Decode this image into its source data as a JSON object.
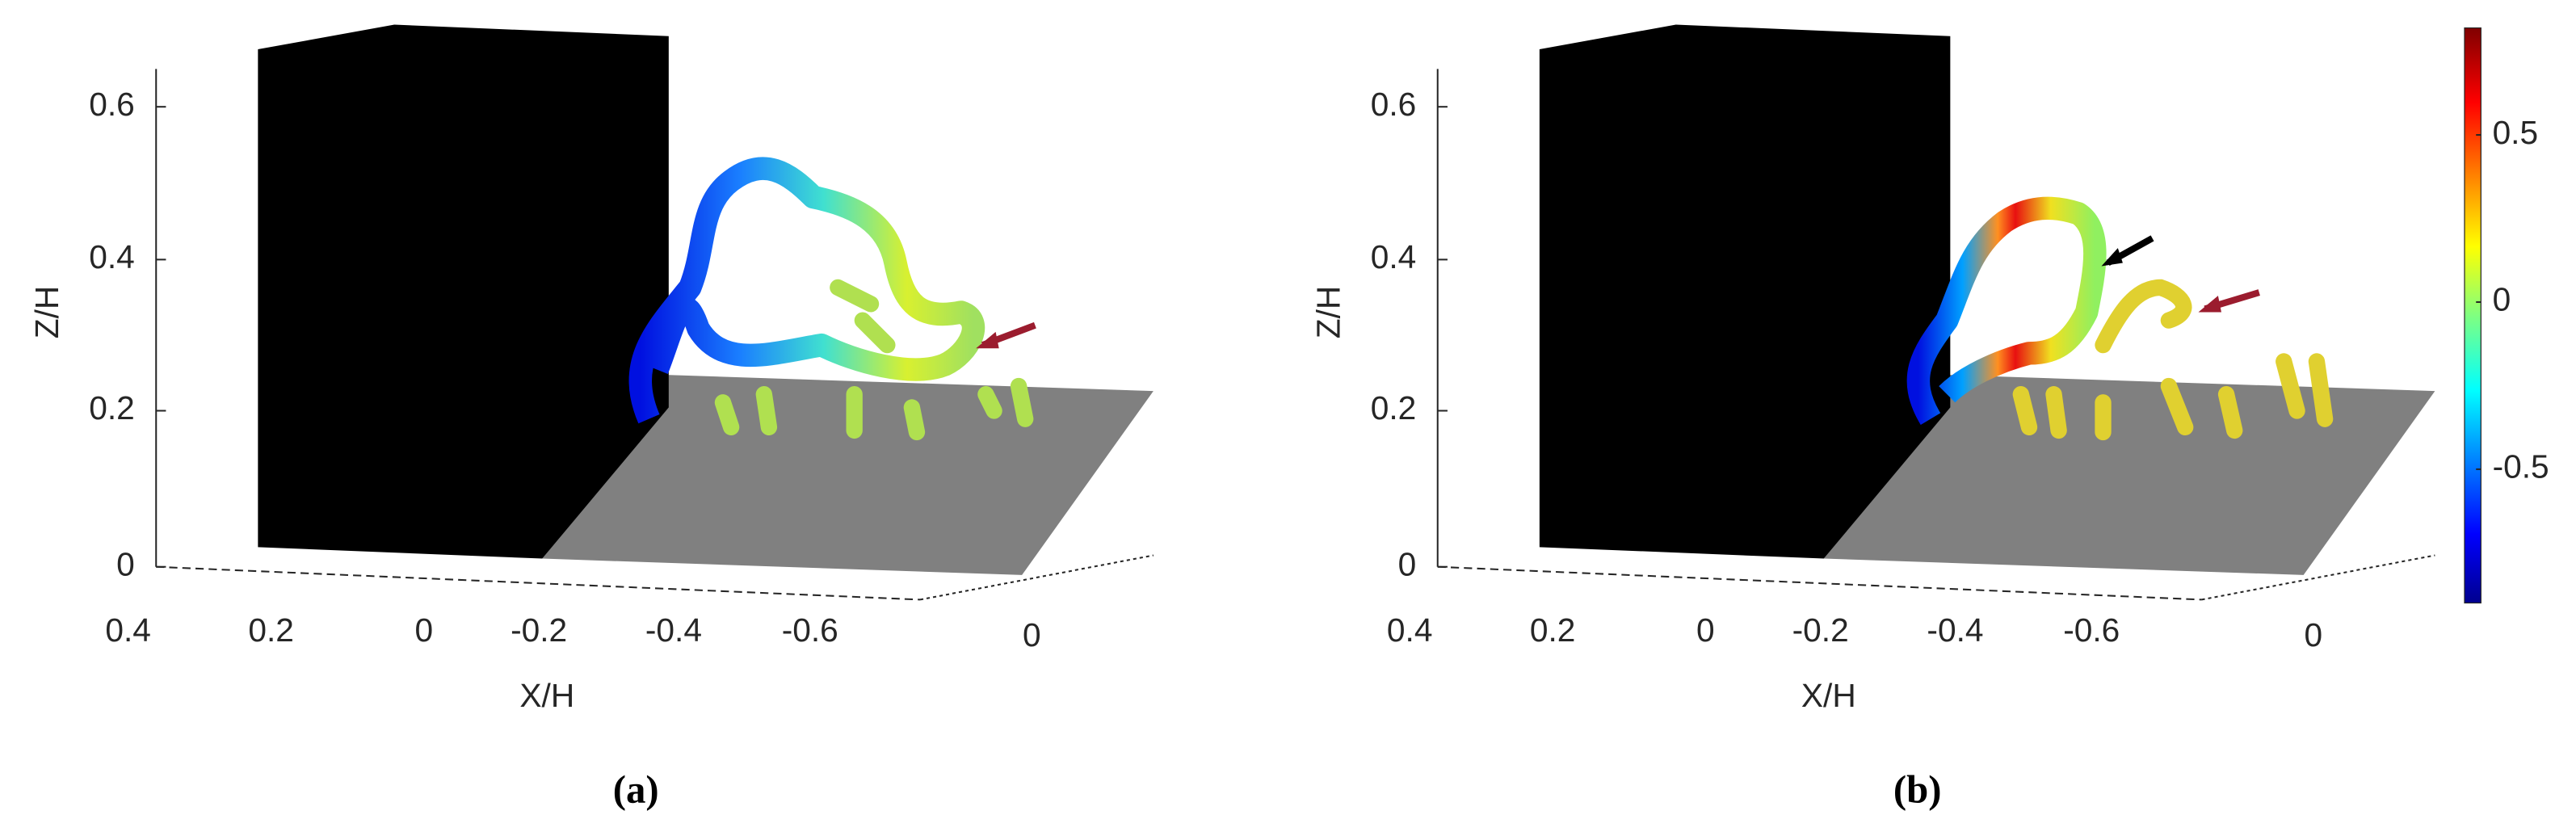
{
  "panels": [
    {
      "caption": "(a)",
      "z_label": "Z/H",
      "z_ticks": [
        "0.6",
        "0.4",
        "0.2",
        "0"
      ],
      "x_label": "X/H",
      "x_ticks": [
        "0.4",
        "0.2",
        "0",
        "-0.2",
        "-0.4",
        "-0.6"
      ],
      "y_ticks": [
        "0"
      ]
    },
    {
      "caption": "(b)",
      "z_label": "Z/H",
      "z_ticks": [
        "0.6",
        "0.4",
        "0.2",
        "0"
      ],
      "x_label": "X/H",
      "x_ticks": [
        "0.4",
        "0.2",
        "0",
        "-0.2",
        "-0.4",
        "-0.6"
      ],
      "y_ticks": [
        "0"
      ]
    }
  ],
  "colorbar": {
    "lim": [
      -0.9,
      0.82
    ],
    "ticks": [
      -0.5,
      0,
      0.5
    ]
  }
}
